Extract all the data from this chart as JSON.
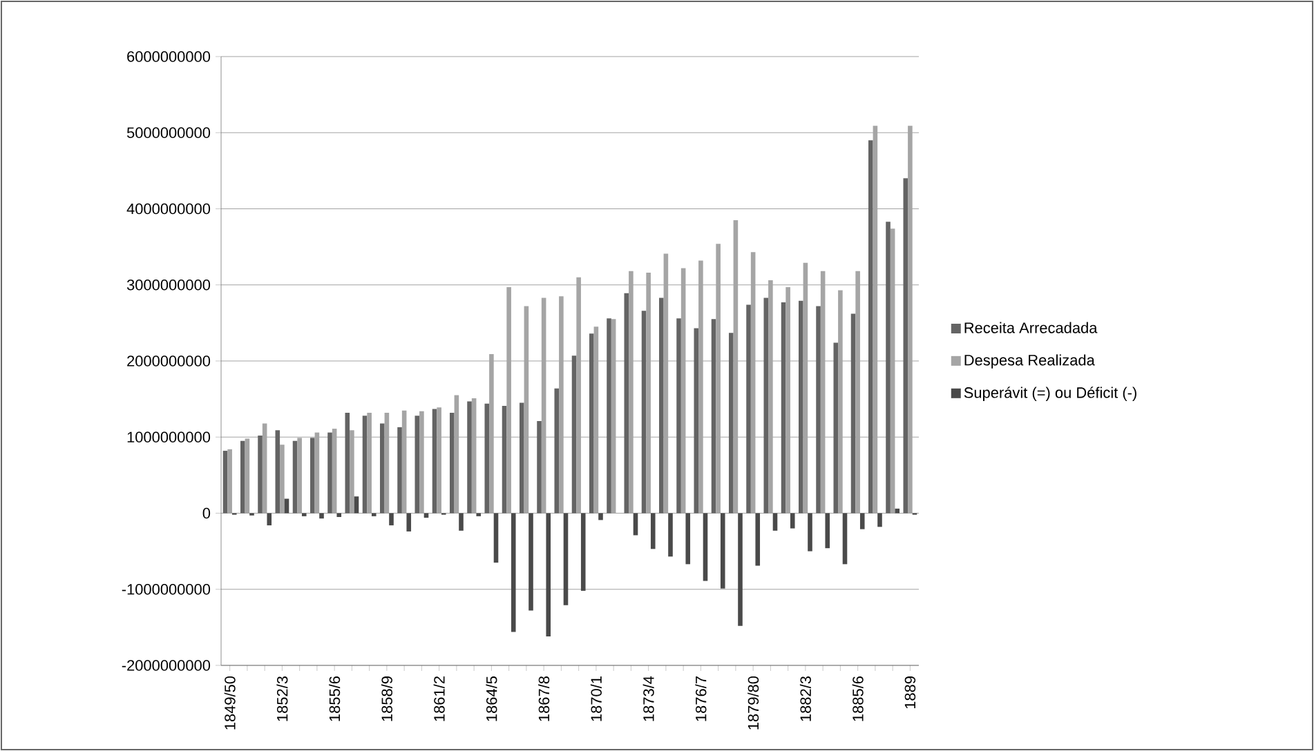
{
  "chart_data": {
    "type": "bar",
    "categories": [
      "1849/50",
      null,
      null,
      "1852/3",
      null,
      null,
      "1855/6",
      null,
      null,
      "1858/9",
      null,
      null,
      "1861/2",
      null,
      null,
      "1864/5",
      null,
      null,
      "1867/8",
      null,
      null,
      "1870/1",
      null,
      null,
      "1873/4",
      null,
      null,
      "1876/7",
      null,
      null,
      "1879/80",
      null,
      null,
      "1882/3",
      null,
      null,
      "1885/6",
      null,
      null,
      "1889"
    ],
    "series": [
      {
        "name": "Receita Arrecadada",
        "color": "#646464",
        "values": [
          820000000,
          950000000,
          1020000000,
          1090000000,
          950000000,
          990000000,
          1060000000,
          1320000000,
          1280000000,
          1180000000,
          1130000000,
          1280000000,
          1370000000,
          1320000000,
          1470000000,
          1440000000,
          1410000000,
          1450000000,
          1210000000,
          1640000000,
          2070000000,
          2360000000,
          2560000000,
          2890000000,
          2660000000,
          2830000000,
          2560000000,
          2430000000,
          2550000000,
          2370000000,
          2740000000,
          2830000000,
          2770000000,
          2790000000,
          2720000000,
          2240000000,
          2620000000,
          4900000000,
          3830000000,
          4400000000
        ]
      },
      {
        "name": "Despesa Realizada",
        "color": "#a5a5a5",
        "values": [
          840000000,
          980000000,
          1180000000,
          900000000,
          990000000,
          1060000000,
          1110000000,
          1090000000,
          1320000000,
          1320000000,
          1350000000,
          1340000000,
          1390000000,
          1550000000,
          1510000000,
          2090000000,
          2970000000,
          2720000000,
          2830000000,
          2850000000,
          3100000000,
          2450000000,
          2550000000,
          3180000000,
          3160000000,
          3410000000,
          3220000000,
          3320000000,
          3540000000,
          3850000000,
          3430000000,
          3060000000,
          2970000000,
          3290000000,
          3180000000,
          2930000000,
          3180000000,
          5090000000,
          3740000000,
          5090000000
        ]
      },
      {
        "name": "Superávit (=) ou Déficit (-)",
        "color": "#4a4a4a",
        "values": [
          -20000000,
          -30000000,
          -160000000,
          190000000,
          -40000000,
          -70000000,
          -50000000,
          220000000,
          -40000000,
          -160000000,
          -240000000,
          -60000000,
          -20000000,
          -230000000,
          -40000000,
          -650000000,
          -1560000000,
          -1280000000,
          -1620000000,
          -1210000000,
          -1020000000,
          -90000000,
          0,
          -290000000,
          -470000000,
          -570000000,
          -670000000,
          -890000000,
          -990000000,
          -1480000000,
          -690000000,
          -230000000,
          -200000000,
          -500000000,
          -460000000,
          -670000000,
          -210000000,
          -180000000,
          60000000,
          -20000000
        ]
      }
    ],
    "ylim": [
      -2000000000,
      6000000000
    ],
    "yticks": [
      -2000000000,
      -1000000000,
      0,
      1000000000,
      2000000000,
      3000000000,
      4000000000,
      5000000000,
      6000000000
    ],
    "grid": "y",
    "legend": "right"
  }
}
